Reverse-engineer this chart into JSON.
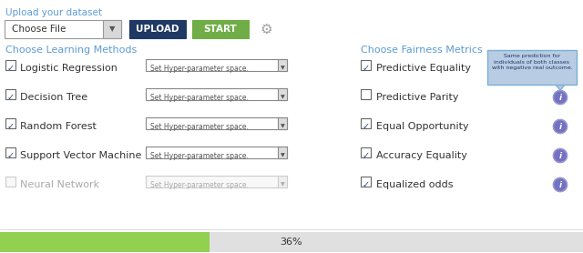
{
  "bg_color": "#ffffff",
  "title": "Upload your dataset",
  "title_color": "#5b9bd5",
  "upload_btn": {
    "label": "UPLOAD",
    "color": "#1f3864",
    "text_color": "#ffffff"
  },
  "start_btn": {
    "label": "START",
    "color": "#70ad47",
    "text_color": "#ffffff"
  },
  "choose_file": {
    "label": "Choose File"
  },
  "left_section_title": "Choose Learning Methods",
  "left_section_color": "#5b9bd5",
  "learning_methods": [
    {
      "name": "Logistic Regression",
      "checked": true,
      "enabled": true
    },
    {
      "name": "Decision Tree",
      "checked": true,
      "enabled": true
    },
    {
      "name": "Random Forest",
      "checked": true,
      "enabled": true
    },
    {
      "name": "Support Vector Machine",
      "checked": true,
      "enabled": true
    },
    {
      "name": "Neural Network",
      "checked": false,
      "enabled": false
    }
  ],
  "right_section_title": "Choose Fairness Metrics",
  "right_section_color": "#5b9bd5",
  "fairness_metrics": [
    {
      "name": "Predictive Equality",
      "checked": true
    },
    {
      "name": "Predictive Parity",
      "checked": false
    },
    {
      "name": "Equal Opportunity",
      "checked": true
    },
    {
      "name": "Accuracy Equality",
      "checked": true
    },
    {
      "name": "Equalized odds",
      "checked": true
    }
  ],
  "tooltip_text": "Same prediction for\nindividuals of both classes\nwith negative real outcome.",
  "tooltip_color": "#b8cce4",
  "tooltip_border": "#7bafd4",
  "progress": 36,
  "progress_bar_color": "#92d050",
  "progress_bar_bg": "#e0e0e0",
  "dropdown_text": "Set Hyper-parameter space.",
  "info_circle_color": "#7472c0",
  "info_circle_border": "#9b99d4",
  "checkbox_check_color": "#2e4a7a",
  "gear_color": "#a0a0a0"
}
